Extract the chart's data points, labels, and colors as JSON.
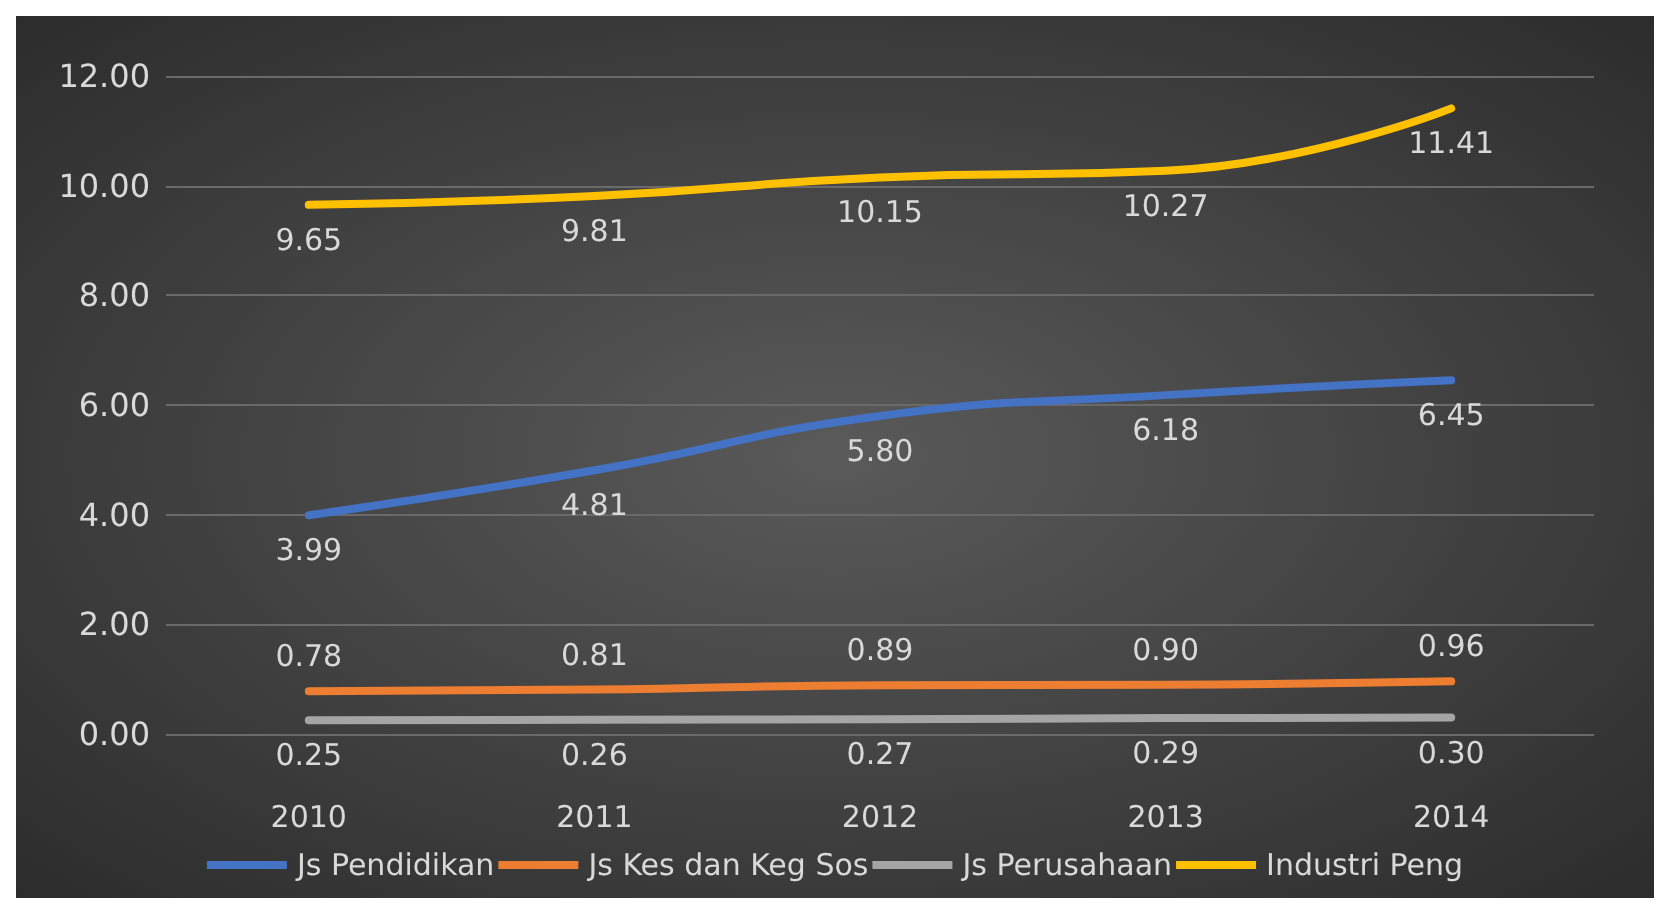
{
  "chart_data": {
    "type": "line",
    "categories": [
      "2010",
      "2011",
      "2012",
      "2013",
      "2014"
    ],
    "series": [
      {
        "name": "Js Pendidikan",
        "color": "#4472c4",
        "values": [
          3.99,
          4.81,
          5.8,
          6.18,
          6.45
        ],
        "value_labels": [
          "3.99",
          "4.81",
          "5.80",
          "6.18",
          "6.45"
        ]
      },
      {
        "name": "Js Kes dan Keg Sos",
        "color": "#ed7d31",
        "values": [
          0.78,
          0.81,
          0.89,
          0.9,
          0.96
        ],
        "value_labels": [
          "0.78",
          "0.81",
          "0.89",
          "0.90",
          "0.96"
        ]
      },
      {
        "name": "Js Perusahaan",
        "color": "#a5a5a5",
        "values": [
          0.25,
          0.26,
          0.27,
          0.29,
          0.3
        ],
        "value_labels": [
          "0.25",
          "0.26",
          "0.27",
          "0.29",
          "0.30"
        ]
      },
      {
        "name": "Industri Peng",
        "color": "#ffc000",
        "values": [
          9.65,
          9.81,
          10.15,
          10.27,
          11.41
        ],
        "value_labels": [
          "9.65",
          "9.81",
          "10.15",
          "10.27",
          "11.41"
        ]
      }
    ],
    "ylim": [
      0,
      12
    ],
    "yticks": [
      {
        "value": 0,
        "label": "0.00"
      },
      {
        "value": 2,
        "label": "2.00"
      },
      {
        "value": 4,
        "label": "4.00"
      },
      {
        "value": 6,
        "label": "6.00"
      },
      {
        "value": 8,
        "label": "8.00"
      },
      {
        "value": 10,
        "label": "10.00"
      },
      {
        "value": 12,
        "label": "12.00"
      }
    ],
    "grid": "y",
    "legend": "bottom",
    "marker": "none",
    "line_style": "solid"
  }
}
